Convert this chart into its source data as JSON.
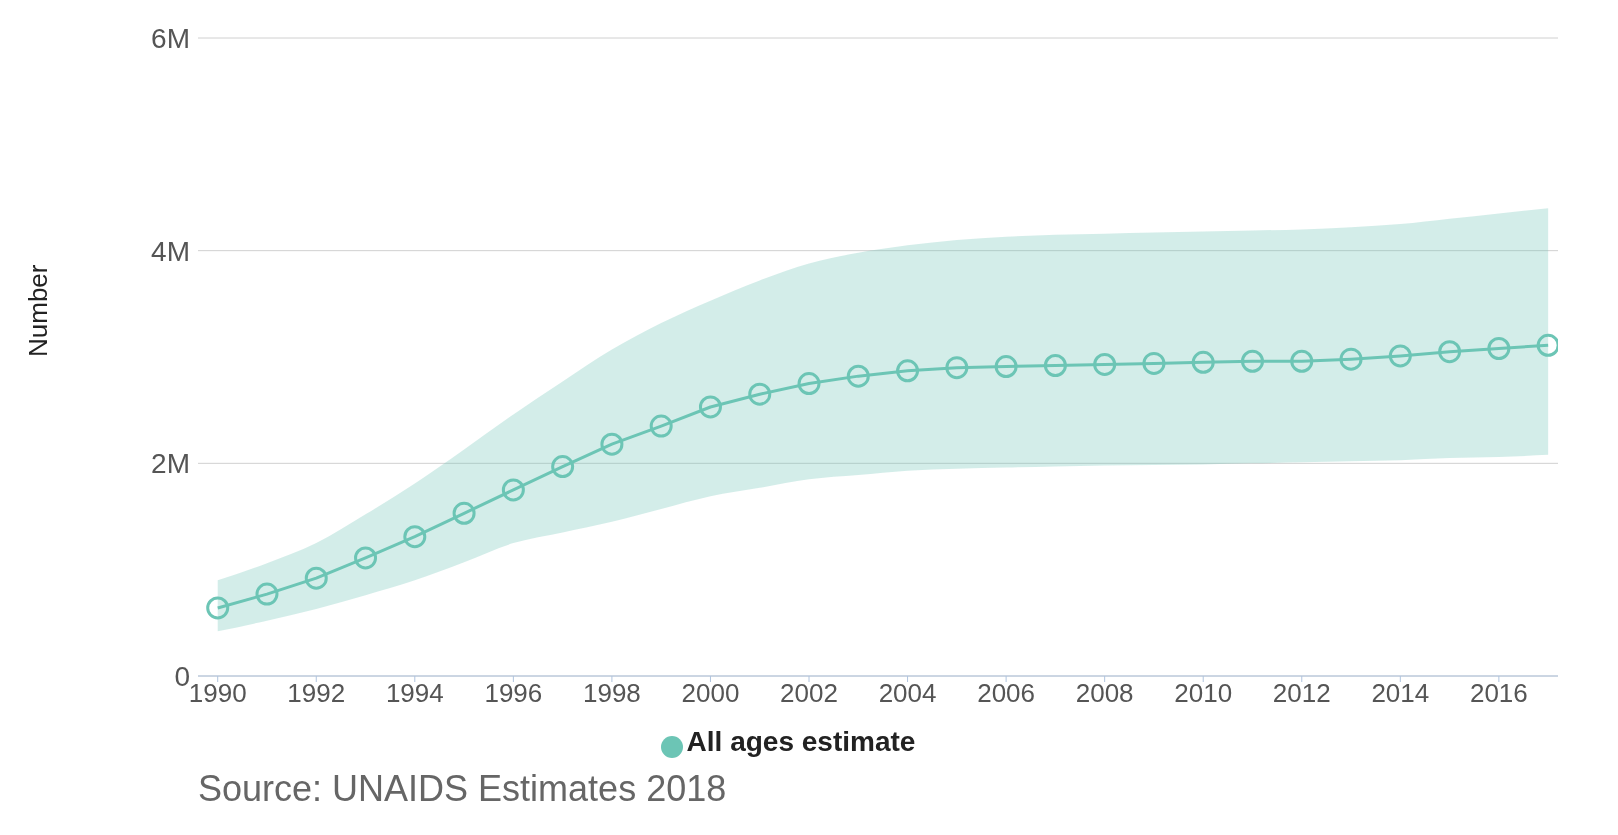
{
  "chart_data": {
    "type": "line",
    "ylabel": "Number",
    "x": [
      1990,
      1991,
      1992,
      1993,
      1994,
      1995,
      1996,
      1997,
      1998,
      1999,
      2000,
      2001,
      2002,
      2003,
      2004,
      2005,
      2006,
      2007,
      2008,
      2009,
      2010,
      2011,
      2012,
      2013,
      2014,
      2015,
      2016,
      2017
    ],
    "series": [
      {
        "name": "All ages estimate",
        "color": "#6cc5b5",
        "values": [
          640000,
          770000,
          920000,
          1110000,
          1310000,
          1530000,
          1750000,
          1970000,
          2180000,
          2350000,
          2530000,
          2650000,
          2750000,
          2820000,
          2870000,
          2900000,
          2910000,
          2920000,
          2930000,
          2940000,
          2950000,
          2960000,
          2960000,
          2980000,
          3010000,
          3050000,
          3080000,
          3110000
        ],
        "lower": [
          420000,
          520000,
          630000,
          760000,
          900000,
          1070000,
          1250000,
          1350000,
          1450000,
          1570000,
          1690000,
          1770000,
          1850000,
          1890000,
          1930000,
          1950000,
          1960000,
          1970000,
          1980000,
          1985000,
          1990000,
          2000000,
          2010000,
          2020000,
          2030000,
          2050000,
          2060000,
          2080000
        ],
        "upper": [
          900000,
          1060000,
          1250000,
          1520000,
          1810000,
          2130000,
          2460000,
          2770000,
          3070000,
          3320000,
          3530000,
          3720000,
          3880000,
          3980000,
          4050000,
          4100000,
          4130000,
          4150000,
          4160000,
          4170000,
          4180000,
          4190000,
          4200000,
          4220000,
          4250000,
          4300000,
          4350000,
          4400000
        ]
      }
    ],
    "xlim": [
      1989.6,
      2017.2
    ],
    "xticks": [
      1990,
      1992,
      1994,
      1996,
      1998,
      2000,
      2002,
      2004,
      2006,
      2008,
      2010,
      2012,
      2014,
      2016
    ],
    "ylim": [
      0,
      6000000
    ],
    "yticks": [
      0,
      {
        "value": 2000000,
        "label": "2M"
      },
      {
        "value": 4000000,
        "label": "4M"
      },
      {
        "value": 6000000,
        "label": "6M"
      }
    ],
    "grid": "y",
    "legend": "bottom",
    "marker": "circle",
    "line_style": "solid",
    "annotations": [
      "Source: UNAIDS Estimates 2018"
    ]
  }
}
